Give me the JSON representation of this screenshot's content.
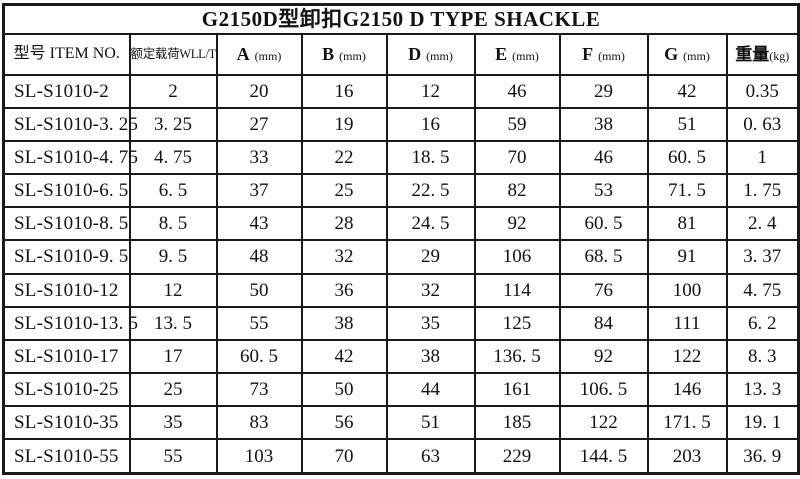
{
  "title": "G2150D型卸扣G2150 D TYPE SHACKLE",
  "table": {
    "col_item": "型号 ITEM NO.",
    "col_wll": "额定载荷WLL/T",
    "dims": [
      {
        "name": "A",
        "unit": "(mm)"
      },
      {
        "name": "B",
        "unit": "(mm)"
      },
      {
        "name": "D",
        "unit": "(mm)"
      },
      {
        "name": "E",
        "unit": "(mm)"
      },
      {
        "name": "F",
        "unit": "(mm)"
      },
      {
        "name": "G",
        "unit": "(mm)"
      }
    ],
    "col_weight": {
      "name": "重量",
      "unit": "(kg)"
    },
    "rows": [
      [
        "SL-S1010-2",
        "2",
        "20",
        "16",
        "12",
        "46",
        "29",
        "42",
        "0.35"
      ],
      [
        "SL-S1010-3. 25",
        "3. 25",
        "27",
        "19",
        "16",
        "59",
        "38",
        "51",
        "0. 63"
      ],
      [
        "SL-S1010-4. 75",
        "4. 75",
        "33",
        "22",
        "18. 5",
        "70",
        "46",
        "60. 5",
        "1"
      ],
      [
        "SL-S1010-6. 5",
        "6. 5",
        "37",
        "25",
        "22. 5",
        "82",
        "53",
        "71. 5",
        "1. 75"
      ],
      [
        "SL-S1010-8. 5",
        "8. 5",
        "43",
        "28",
        "24. 5",
        "92",
        "60. 5",
        "81",
        "2. 4"
      ],
      [
        "SL-S1010-9. 5",
        "9. 5",
        "48",
        "32",
        "29",
        "106",
        "68. 5",
        "91",
        "3. 37"
      ],
      [
        "SL-S1010-12",
        "12",
        "50",
        "36",
        "32",
        "114",
        "76",
        "100",
        "4. 75"
      ],
      [
        "SL-S1010-13. 5",
        "13. 5",
        "55",
        "38",
        "35",
        "125",
        "84",
        "111",
        "6. 2"
      ],
      [
        "SL-S1010-17",
        "17",
        "60. 5",
        "42",
        "38",
        "136. 5",
        "92",
        "122",
        "8. 3"
      ],
      [
        "SL-S1010-25",
        "25",
        "73",
        "50",
        "44",
        "161",
        "106. 5",
        "146",
        "13. 3"
      ],
      [
        "SL-S1010-35",
        "35",
        "83",
        "56",
        "51",
        "185",
        "122",
        "171. 5",
        "19. 1"
      ],
      [
        "SL-S1010-55",
        "55",
        "103",
        "70",
        "63",
        "229",
        "144. 5",
        "203",
        "36. 9"
      ]
    ]
  }
}
